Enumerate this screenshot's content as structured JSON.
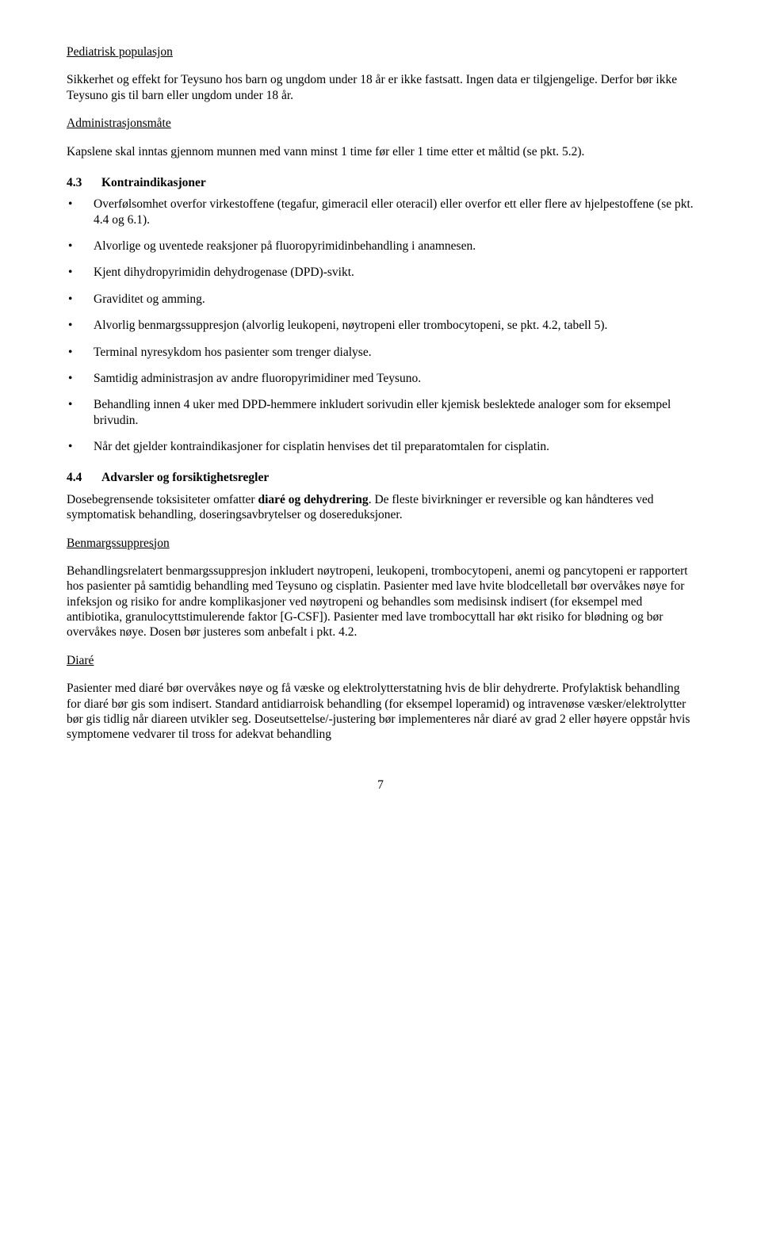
{
  "h1": "Pediatrisk populasjon",
  "p1": "Sikkerhet og effekt for Teysuno hos barn og ungdom under 18 år er ikke fastsatt. Ingen data er tilgjengelige. Derfor bør ikke Teysuno gis til barn eller ungdom under 18 år.",
  "h2": "Administrasjonsmåte",
  "p2": "Kapslene skal inntas gjennom munnen med vann minst 1 time før eller 1 time etter et måltid (se pkt. 5.2).",
  "sec43num": "4.3",
  "sec43title": "Kontraindikasjoner",
  "bullets43": [
    "Overfølsomhet overfor virkestoffene (tegafur, gimeracil eller oteracil) eller overfor ett eller flere av hjelpestoffene (se pkt. 4.4 og 6.1).",
    "Alvorlige og uventede reaksjoner på fluoropyrimidinbehandling i anamnesen.",
    "Kjent dihydropyrimidin dehydrogenase (DPD)-svikt.",
    "Graviditet og amming.",
    "Alvorlig benmargssuppresjon (alvorlig leukopeni, nøytropeni eller trombocytopeni, se pkt. 4.2, tabell 5).",
    "Terminal nyresykdom hos pasienter som trenger dialyse.",
    "Samtidig administrasjon av andre fluoropyrimidiner med Teysuno.",
    "Behandling innen 4 uker med DPD-hemmere inkludert sorivudin eller kjemisk beslektede analoger som for eksempel brivudin.",
    "Når det gjelder kontraindikasjoner for cisplatin henvises det til preparatomtalen for cisplatin."
  ],
  "sec44num": "4.4",
  "sec44title": "Advarsler og forsiktighetsregler",
  "p44a_pre": "Dosebegrensende toksisiteter omfatter ",
  "p44a_bold": "diaré og dehydrering",
  "p44a_post": ". De fleste bivirkninger er reversible og kan håndteres ved symptomatisk behandling, doseringsavbrytelser og dosereduksjoner.",
  "h3": "Benmargssuppresjon",
  "p44b": "Behandlingsrelatert benmargssuppresjon inkludert nøytropeni, leukopeni, trombocytopeni, anemi og pancytopeni er rapportert hos pasienter på samtidig behandling med Teysuno og cisplatin. Pasienter med lave hvite blodcelletall bør overvåkes nøye for infeksjon og risiko for andre komplikasjoner ved nøytropeni og behandles som medisinsk indisert (for eksempel med antibiotika, granulocyttstimulerende faktor [G-CSF]). Pasienter med lave trombocyttall har økt risiko for blødning og bør overvåkes nøye. Dosen bør justeres som anbefalt i pkt. 4.2.",
  "h4": "Diaré",
  "p44c": "Pasienter med diaré bør overvåkes nøye og få væske og elektrolytterstatning hvis de blir dehydrerte. Profylaktisk behandling for diaré bør gis som indisert. Standard antidiarroisk behandling (for eksempel loperamid) og intravenøse væsker/elektrolytter bør gis tidlig når diareen utvikler seg. Doseutsettelse/-justering bør implementeres når diaré av grad 2 eller høyere oppstår hvis symptomene vedvarer til tross for adekvat behandling",
  "pagenum": "7"
}
